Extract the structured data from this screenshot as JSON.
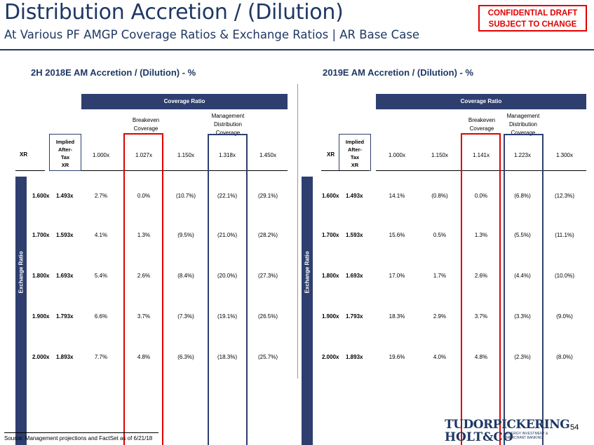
{
  "header": {
    "title": "Distribution Accretion / (Dilution)",
    "subtitle": "At Various PF AMGP Coverage Ratios & Exchange Ratios | AR Base Case",
    "confidential_line1": "CONFIDENTIAL DRAFT",
    "confidential_line2": "SUBJECT TO CHANGE"
  },
  "left": {
    "section_title": "2H 2018E AM Accretion / (Dilution) - %",
    "coverage_label": "Coverage Ratio",
    "breakeven_label_1": "Breakeven",
    "breakeven_label_2": "Coverage",
    "mgmt_label_1": "Management",
    "mgmt_label_2": "Distribution",
    "mgmt_label_3": "Coverage",
    "xr_label": "XR",
    "implied_1": "Implied",
    "implied_2": "After-",
    "implied_3": "Tax",
    "implied_4": "XR",
    "exchange_label": "Exchange Ratio",
    "columns": [
      "1.000x",
      "1.027x",
      "1.150x",
      "1.318x",
      "1.450x"
    ],
    "rows": [
      {
        "xr": "1.600x",
        "implied": "1.493x",
        "values": [
          "2.7%",
          "0.0%",
          "(10.7%)",
          "(22.1%)",
          "(29.1%)"
        ]
      },
      {
        "xr": "1.700x",
        "implied": "1.593x",
        "values": [
          "4.1%",
          "1.3%",
          "(9.5%)",
          "(21.0%)",
          "(28.2%)"
        ]
      },
      {
        "xr": "1.800x",
        "implied": "1.693x",
        "values": [
          "5.4%",
          "2.6%",
          "(8.4%)",
          "(20.0%)",
          "(27.3%)"
        ]
      },
      {
        "xr": "1.900x",
        "implied": "1.793x",
        "values": [
          "6.6%",
          "3.7%",
          "(7.3%)",
          "(19.1%)",
          "(26.5%)"
        ]
      },
      {
        "xr": "2.000x",
        "implied": "1.893x",
        "values": [
          "7.7%",
          "4.8%",
          "(6.3%)",
          "(18.3%)",
          "(25.7%)"
        ]
      }
    ]
  },
  "right": {
    "section_title": "2019E AM Accretion / (Dilution) - %",
    "coverage_label": "Coverage Ratio",
    "breakeven_label_1": "Breakeven",
    "breakeven_label_2": "Coverage",
    "mgmt_label_1": "Management",
    "mgmt_label_2": "Distribution",
    "mgmt_label_3": "Coverage",
    "xr_label": "XR",
    "implied_1": "Implied",
    "implied_2": "After-",
    "implied_3": "Tax",
    "implied_4": "XR",
    "exchange_label": "Exchange Ratio",
    "columns": [
      "1.000x",
      "1.150x",
      "1.141x",
      "1.223x",
      "1.300x"
    ],
    "rows": [
      {
        "xr": "1.600x",
        "implied": "1.493x",
        "values": [
          "14.1%",
          "(0.8%)",
          "0.0%",
          "(6.8%)",
          "(12.3%)"
        ]
      },
      {
        "xr": "1.700x",
        "implied": "1.593x",
        "values": [
          "15.6%",
          "0.5%",
          "1.3%",
          "(5.5%)",
          "(11.1%)"
        ]
      },
      {
        "xr": "1.800x",
        "implied": "1.693x",
        "values": [
          "17.0%",
          "1.7%",
          "2.6%",
          "(4.4%)",
          "(10.0%)"
        ]
      },
      {
        "xr": "1.900x",
        "implied": "1.793x",
        "values": [
          "18.3%",
          "2.9%",
          "3.7%",
          "(3.3%)",
          "(9.0%)"
        ]
      },
      {
        "xr": "2.000x",
        "implied": "1.893x",
        "values": [
          "19.6%",
          "4.0%",
          "4.8%",
          "(2.3%)",
          "(8.0%)"
        ]
      }
    ]
  },
  "footer": {
    "source": "Source: Management projections and FactSet as of 6/21/18",
    "page_number": "54",
    "logo_line1": "TUDORPICKERING",
    "logo_line2": "HOLT&CO",
    "logo_tag1": "ENERGY INVESTMENT &",
    "logo_tag2": "MERCHANT BANKING"
  }
}
